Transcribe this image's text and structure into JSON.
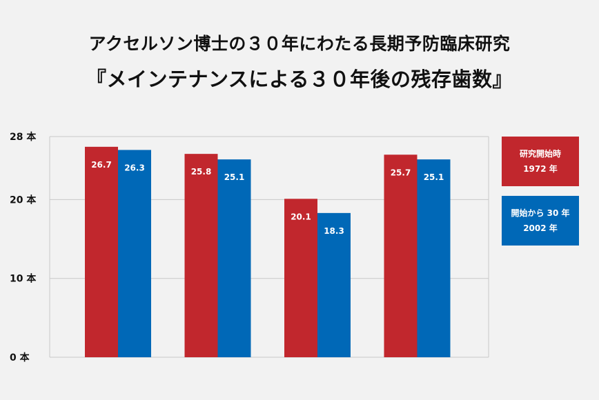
{
  "title": {
    "line1": "アクセルソン博士の３０年にわたる長期予防臨床研究",
    "line2": "『メインテナンスによる３０年後の残存歯数』"
  },
  "legend": [
    {
      "line1": "研究開始時",
      "line2": "1972 年",
      "color": "#c1272d"
    },
    {
      "line1": "開始から 30 年",
      "line2": "2002 年",
      "color": "#0068b7"
    }
  ],
  "chart_data": {
    "type": "bar",
    "title": "『メインテナンスによる３０年後の残存歯数』",
    "categories": [
      "",
      "",
      "",
      ""
    ],
    "series": [
      {
        "name": "研究開始時 1972 年",
        "values": [
          26.7,
          25.8,
          20.1,
          25.7
        ],
        "color": "#c1272d"
      },
      {
        "name": "開始から 30 年 2002 年",
        "values": [
          26.3,
          25.1,
          18.3,
          25.1
        ],
        "color": "#0068b7"
      }
    ],
    "yticks": [
      0,
      10,
      20,
      28
    ],
    "ytick_labels": [
      "0 本",
      "10 本",
      "20 本",
      "28 本"
    ],
    "ylim": [
      0,
      28
    ],
    "grid": true,
    "legend_position": "right"
  }
}
